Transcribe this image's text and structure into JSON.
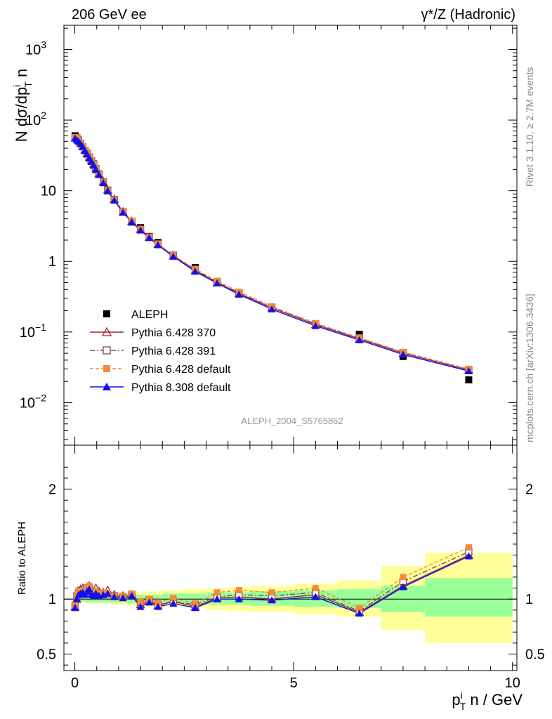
{
  "header": {
    "left": "206 GeV ee",
    "right": "γ*/Z (Hadronic)"
  },
  "side": {
    "rivet": "Rivet 3.1.10, ≥ 2.7M events",
    "source": "mcplots.cern.ch [arXiv:1306.3436]"
  },
  "watermark": "ALEPH_2004_S5765862",
  "colors": {
    "aleph": "#000000",
    "py370": "#a0232f",
    "py391": "#7a4a5a",
    "py6def": "#f7893a",
    "py8def": "#1010ee",
    "band_inner": "#99ff99",
    "band_outer": "#ffff99"
  },
  "chart_data": [
    {
      "type": "scatter",
      "panel": "main",
      "ylabel": "N dσ/dp^i_T n",
      "ylog": true,
      "ylim": [
        0.0025,
        2200
      ],
      "xlim": [
        -0.25,
        10.1
      ],
      "yticks": [
        "10^-2",
        "10^-1",
        "1",
        "10",
        "10^2",
        "10^3"
      ],
      "legend_position": "middle-left",
      "x": [
        0.005,
        0.045,
        0.085,
        0.13,
        0.18,
        0.23,
        0.28,
        0.33,
        0.38,
        0.43,
        0.48,
        0.55,
        0.65,
        0.75,
        0.9,
        1.1,
        1.3,
        1.5,
        1.7,
        1.9,
        2.25,
        2.75,
        3.25,
        3.75,
        4.5,
        5.5,
        6.5,
        7.5,
        9.0
      ],
      "series": [
        {
          "name": "ALEPH",
          "marker": "square",
          "values": [
            60,
            56,
            52,
            47,
            42,
            37,
            33,
            29,
            26,
            23,
            20,
            17,
            13,
            10,
            7.5,
            5.0,
            3.6,
            3.0,
            2.25,
            1.85,
            1.22,
            0.82,
            0.51,
            0.35,
            0.22,
            0.125,
            0.093,
            0.045,
            0.021
          ]
        },
        {
          "name": "Pythia 6.428 370",
          "marker": "open-triangle",
          "values": [
            56,
            56,
            52,
            48,
            43,
            38,
            34,
            30,
            27,
            24,
            21,
            17.5,
            13.5,
            10.3,
            7.6,
            5.05,
            3.7,
            2.85,
            2.2,
            1.75,
            1.2,
            0.74,
            0.5,
            0.35,
            0.22,
            0.127,
            0.08,
            0.05,
            0.029
          ]
        },
        {
          "name": "Pythia 6.428 391",
          "marker": "open-square",
          "values": [
            56,
            55,
            51,
            47,
            42,
            37,
            34,
            30,
            26.5,
            24,
            20.5,
            17.3,
            13.3,
            10.2,
            7.5,
            5.0,
            3.7,
            2.85,
            2.2,
            1.75,
            1.2,
            0.76,
            0.51,
            0.36,
            0.225,
            0.13,
            0.082,
            0.051,
            0.029
          ]
        },
        {
          "name": "Pythia 6.428 default",
          "marker": "filled-square",
          "values": [
            57,
            56,
            52,
            47.5,
            42.5,
            37.5,
            34,
            30,
            26.5,
            23.8,
            20.4,
            17.2,
            13.3,
            10.1,
            7.5,
            5.0,
            3.75,
            2.85,
            2.22,
            1.78,
            1.22,
            0.78,
            0.53,
            0.37,
            0.23,
            0.133,
            0.083,
            0.052,
            0.03
          ]
        },
        {
          "name": "Pythia 8.308 default",
          "marker": "filled-triangle",
          "values": [
            55,
            52,
            50,
            46,
            42,
            37,
            33,
            29,
            26,
            23,
            20,
            16.8,
            13,
            10,
            7.3,
            4.9,
            3.6,
            2.75,
            2.15,
            1.7,
            1.17,
            0.72,
            0.49,
            0.34,
            0.21,
            0.122,
            0.077,
            0.048,
            0.028
          ]
        }
      ]
    },
    {
      "type": "line",
      "panel": "ratio",
      "ylabel": "Ratio to ALEPH",
      "xlabel": "p^i_T n / GeV",
      "ylim": [
        0.35,
        2.4
      ],
      "xlim": [
        -0.25,
        10.1
      ],
      "yticks": [
        "0.5",
        "1",
        "2"
      ],
      "xticks": [
        "0",
        "5",
        "10"
      ],
      "x": [
        0.005,
        0.045,
        0.085,
        0.13,
        0.18,
        0.23,
        0.28,
        0.33,
        0.38,
        0.43,
        0.48,
        0.55,
        0.65,
        0.75,
        0.9,
        1.1,
        1.3,
        1.5,
        1.7,
        1.9,
        2.25,
        2.75,
        3.25,
        3.75,
        4.5,
        5.5,
        6.5,
        7.5,
        9.0
      ],
      "series": [
        {
          "name": "Pythia 6.428 370",
          "values": [
            0.93,
            1.0,
            1.05,
            1.09,
            1.1,
            1.08,
            1.11,
            1.12,
            1.07,
            1.06,
            1.1,
            1.07,
            1.06,
            1.08,
            1.04,
            1.03,
            1.04,
            0.95,
            0.98,
            0.94,
            0.98,
            0.93,
            1.01,
            1.02,
            1.0,
            1.04,
            0.88,
            1.12,
            1.4
          ]
        },
        {
          "name": "Pythia 6.428 391",
          "values": [
            0.94,
            1.03,
            1.06,
            1.08,
            1.08,
            1.06,
            1.1,
            1.1,
            1.05,
            1.04,
            1.06,
            1.04,
            1.04,
            1.04,
            1.03,
            1.02,
            1.04,
            0.97,
            0.99,
            0.95,
            0.98,
            0.95,
            1.02,
            1.04,
            1.03,
            1.06,
            0.89,
            1.16,
            1.43
          ]
        },
        {
          "name": "Pythia 6.428 default",
          "values": [
            0.95,
            1.04,
            1.07,
            1.07,
            1.07,
            1.06,
            1.1,
            1.12,
            1.04,
            1.03,
            1.07,
            1.05,
            1.06,
            1.05,
            1.03,
            1.03,
            1.05,
            0.98,
            1.0,
            0.97,
            1.01,
            0.96,
            1.06,
            1.08,
            1.06,
            1.1,
            0.92,
            1.2,
            1.47
          ]
        },
        {
          "name": "Pythia 8.308 default",
          "values": [
            0.92,
            1.0,
            1.04,
            1.05,
            1.06,
            1.04,
            1.07,
            1.09,
            1.04,
            1.03,
            1.05,
            1.03,
            1.04,
            1.05,
            1.02,
            1.01,
            1.03,
            0.93,
            0.97,
            0.93,
            0.96,
            0.92,
            1.0,
            1.0,
            0.99,
            1.02,
            0.87,
            1.11,
            1.39
          ]
        }
      ],
      "bands": {
        "x_edges": [
          -0.05,
          0.1,
          0.25,
          0.5,
          0.8,
          1.2,
          1.6,
          2.0,
          2.5,
          3.0,
          3.5,
          4.0,
          5.0,
          6.0,
          7.0,
          8.0,
          10.0
        ],
        "inner": [
          [
            0.98,
            1.02
          ],
          [
            0.98,
            1.02
          ],
          [
            0.97,
            1.03
          ],
          [
            0.97,
            1.03
          ],
          [
            0.97,
            1.04
          ],
          [
            0.96,
            1.04
          ],
          [
            0.96,
            1.04
          ],
          [
            0.96,
            1.05
          ],
          [
            0.95,
            1.05
          ],
          [
            0.95,
            1.06
          ],
          [
            0.95,
            1.06
          ],
          [
            0.94,
            1.07
          ],
          [
            0.93,
            1.08
          ],
          [
            0.92,
            1.09
          ],
          [
            0.88,
            1.12
          ],
          [
            0.84,
            1.19
          ]
        ],
        "outer": [
          [
            0.97,
            1.03
          ],
          [
            0.97,
            1.03
          ],
          [
            0.96,
            1.04
          ],
          [
            0.96,
            1.05
          ],
          [
            0.95,
            1.05
          ],
          [
            0.94,
            1.06
          ],
          [
            0.93,
            1.07
          ],
          [
            0.93,
            1.08
          ],
          [
            0.92,
            1.09
          ],
          [
            0.9,
            1.1
          ],
          [
            0.89,
            1.11
          ],
          [
            0.88,
            1.12
          ],
          [
            0.86,
            1.14
          ],
          [
            0.84,
            1.17
          ],
          [
            0.72,
            1.3
          ],
          [
            0.6,
            1.42
          ]
        ]
      }
    }
  ]
}
